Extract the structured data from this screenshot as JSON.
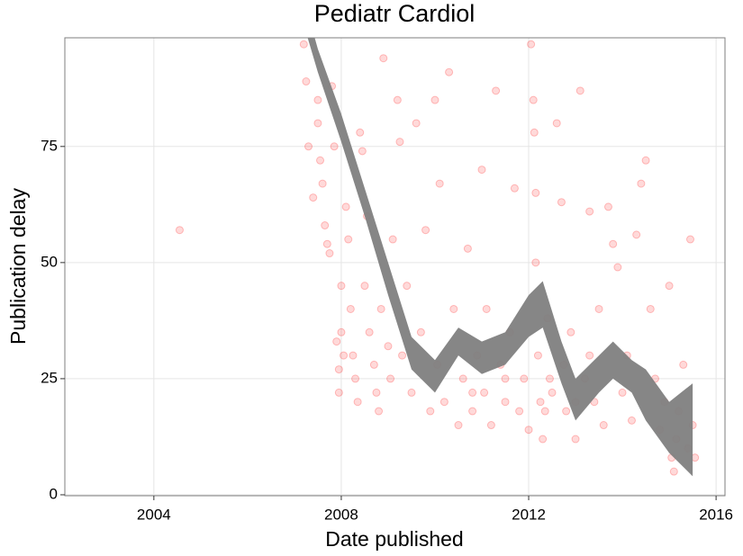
{
  "chart_data": {
    "type": "scatter",
    "title": "Pediatr Cardiol",
    "x_label": "Date published",
    "y_label": "Publication delay",
    "xlim": [
      2002.1,
      2016.19
    ],
    "ylim": [
      -0.2,
      98.4
    ],
    "xticks": [
      2004,
      2008,
      2012,
      2016
    ],
    "yticks": [
      0,
      25,
      50,
      75
    ],
    "grid": true,
    "series": [
      {
        "color": "#ff0000",
        "opacity": 0.15,
        "x": [
          2004.55,
          2007.2,
          2007.25,
          2007.3,
          2007.4,
          2007.5,
          2007.5,
          2007.55,
          2007.6,
          2007.65,
          2007.7,
          2007.75,
          2007.8,
          2007.85,
          2007.9,
          2007.95,
          2007.95,
          2008.0,
          2008.05,
          2008.0,
          2008.1,
          2008.15,
          2008.2,
          2008.25,
          2008.3,
          2008.35,
          2008.4,
          2008.45,
          2008.5,
          2008.55,
          2008.6,
          2008.7,
          2008.75,
          2008.8,
          2008.85,
          2008.9,
          2009.0,
          2009.05,
          2009.1,
          2009.2,
          2009.25,
          2009.3,
          2009.4,
          2009.5,
          2009.6,
          2009.7,
          2009.8,
          2009.9,
          2010.0,
          2010.05,
          2010.1,
          2010.2,
          2010.3,
          2010.4,
          2010.5,
          2010.6,
          2010.7,
          2010.8,
          2010.9,
          2011.0,
          2011.05,
          2011.1,
          2011.2,
          2011.3,
          2011.4,
          2011.5,
          2011.6,
          2011.7,
          2011.8,
          2011.9,
          2012.0,
          2012.05,
          2012.1,
          2012.12,
          2012.15,
          2012.15,
          2012.2,
          2012.25,
          2012.3,
          2012.4,
          2012.5,
          2012.6,
          2012.7,
          2012.75,
          2012.8,
          2012.9,
          2013.0,
          2013.1,
          2013.2,
          2013.3,
          2013.4,
          2013.5,
          2013.6,
          2013.7,
          2013.8,
          2013.9,
          2014.0,
          2014.1,
          2014.2,
          2014.3,
          2014.4,
          2014.5,
          2014.6,
          2014.7,
          2014.8,
          2014.9,
          2015.0,
          2015.05,
          2015.1,
          2015.15,
          2015.2,
          2015.3,
          2015.4,
          2015.45,
          2015.5,
          2015.55,
          2011.5,
          2010.8,
          2012.35,
          2012.45,
          2013.0,
          2013.3
        ],
        "values": [
          57,
          97,
          89,
          75,
          64,
          85,
          80,
          72,
          67,
          58,
          54,
          52,
          88,
          75,
          33,
          27,
          22,
          35,
          30,
          45,
          62,
          55,
          40,
          30,
          25,
          20,
          78,
          74,
          45,
          60,
          35,
          28,
          22,
          18,
          40,
          94,
          32,
          25,
          55,
          85,
          76,
          30,
          45,
          22,
          80,
          35,
          57,
          18,
          85,
          28,
          67,
          20,
          91,
          40,
          15,
          25,
          53,
          18,
          30,
          70,
          22,
          40,
          15,
          87,
          28,
          20,
          35,
          66,
          18,
          25,
          14,
          97,
          85,
          78,
          65,
          50,
          30,
          20,
          12,
          38,
          22,
          80,
          63,
          28,
          18,
          35,
          12,
          87,
          25,
          61,
          20,
          40,
          15,
          62,
          54,
          49,
          22,
          30,
          16,
          56,
          67,
          72,
          40,
          25,
          14,
          20,
          45,
          8,
          5,
          12,
          18,
          28,
          10,
          55,
          15,
          8,
          25,
          22,
          18,
          25,
          20,
          30
        ]
      }
    ],
    "smooth": {
      "color": "#808080",
      "x": [
        2007.0,
        2007.5,
        2008.0,
        2008.5,
        2009.0,
        2009.5,
        2010.0,
        2010.5,
        2011.0,
        2011.5,
        2012.0,
        2012.3,
        2012.7,
        2013.0,
        2013.5,
        2013.8,
        2014.2,
        2014.5,
        2015.0,
        2015.5
      ],
      "lower": [
        108,
        91,
        76,
        60,
        43,
        27,
        22,
        30,
        26,
        28,
        34,
        36,
        24,
        16,
        22,
        25,
        22,
        16,
        9,
        4
      ],
      "upper": [
        114,
        96,
        82,
        66,
        50,
        34,
        29,
        36,
        33,
        35,
        43,
        46,
        33,
        25,
        30,
        33,
        29,
        27,
        20,
        24
      ]
    }
  }
}
